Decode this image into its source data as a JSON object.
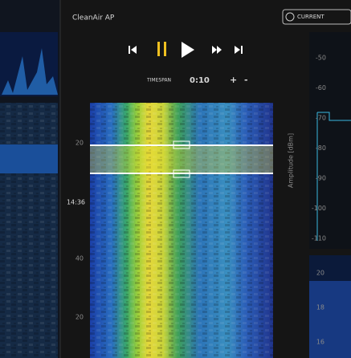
{
  "header": {
    "title": "CleanAir AP",
    "view_button": "CURRENT"
  },
  "timespan": {
    "label": "TIMESPAN",
    "value": "0:10",
    "increase": "+",
    "decrease": "-"
  },
  "waterfall": {
    "time_labels": [
      "20",
      "14:36",
      "40",
      "20"
    ]
  },
  "amplitude_axis": {
    "title": "Amplitude [dBm]",
    "labels": [
      "-50",
      "-60",
      "-70",
      "-80",
      "-90",
      "-100",
      "-110"
    ]
  },
  "lower_axis": {
    "labels": [
      "20",
      "18",
      "16"
    ]
  }
}
